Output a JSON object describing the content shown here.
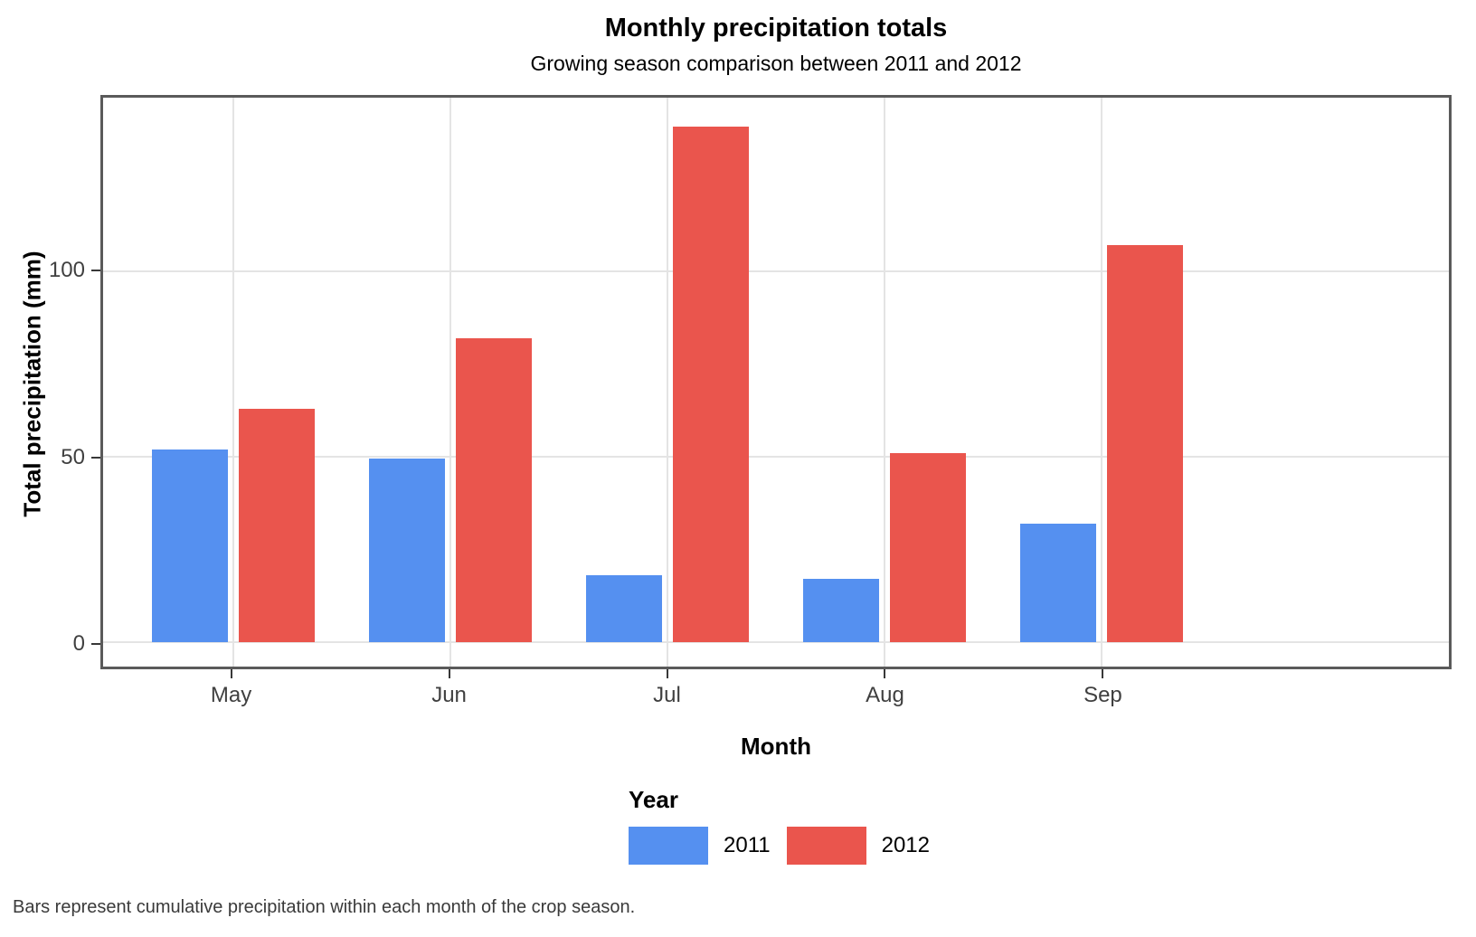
{
  "title": "Monthly precipitation totals",
  "subtitle": "Growing season comparison between 2011 and 2012",
  "caption": "Bars represent cumulative precipitation within each month of the crop season.",
  "chart_data": {
    "type": "bar",
    "title": "Monthly precipitation totals",
    "subtitle": "Growing season comparison between 2011 and 2012",
    "xlabel": "Month",
    "ylabel": "Total precipitation (mm)",
    "categories": [
      "May",
      "Jun",
      "Jul",
      "Aug",
      "Sep"
    ],
    "series": [
      {
        "name": "2011",
        "color": "#5590F0",
        "values": [
          52,
          49.5,
          18,
          17,
          32
        ]
      },
      {
        "name": "2012",
        "color": "#EA554D",
        "values": [
          63,
          82,
          139,
          51,
          107
        ]
      }
    ],
    "y_ticks": [
      0,
      50,
      100
    ],
    "ylim": [
      -6.7,
      146.9
    ],
    "grid": "major-only",
    "legend_title": "Year",
    "legend_position": "bottom",
    "colors": {
      "grid": "#e4e4e4",
      "panel_border": "#5a5a5a",
      "tick_mark": "#383838",
      "tick_text": "#404040"
    }
  }
}
